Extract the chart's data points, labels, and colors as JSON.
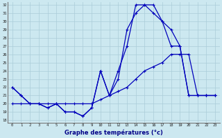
{
  "xlabel": "Graphe des températures (°c)",
  "background_color": "#cce8f0",
  "grid_color": "#aaccd8",
  "line_color": "#0000bb",
  "x_ticks": [
    0,
    1,
    2,
    3,
    4,
    5,
    6,
    7,
    8,
    9,
    10,
    11,
    12,
    13,
    14,
    15,
    16,
    17,
    18,
    19,
    20,
    21,
    22,
    23
  ],
  "ylim_min": 18,
  "ylim_max": 32,
  "y_ticks": [
    18,
    19,
    20,
    21,
    22,
    23,
    24,
    25,
    26,
    27,
    28,
    29,
    30,
    31,
    32
  ],
  "s1": [
    22,
    21,
    20,
    20,
    19.5,
    20,
    19,
    19,
    18.5,
    19.5,
    24,
    21,
    23,
    29,
    31,
    32,
    32,
    30,
    29,
    27,
    21,
    21,
    21,
    21
  ],
  "s2": [
    22,
    21,
    20,
    20,
    19.5,
    20,
    19,
    19,
    18.5,
    19.5,
    24,
    21,
    24,
    27,
    32,
    32,
    31,
    30,
    27,
    27,
    21,
    21,
    21,
    21
  ],
  "s3": [
    20,
    20,
    20,
    20,
    20,
    20,
    20,
    20,
    20,
    20,
    20.5,
    21,
    21.5,
    22,
    23,
    24,
    24.5,
    25,
    26,
    26,
    26,
    21,
    21,
    21
  ]
}
